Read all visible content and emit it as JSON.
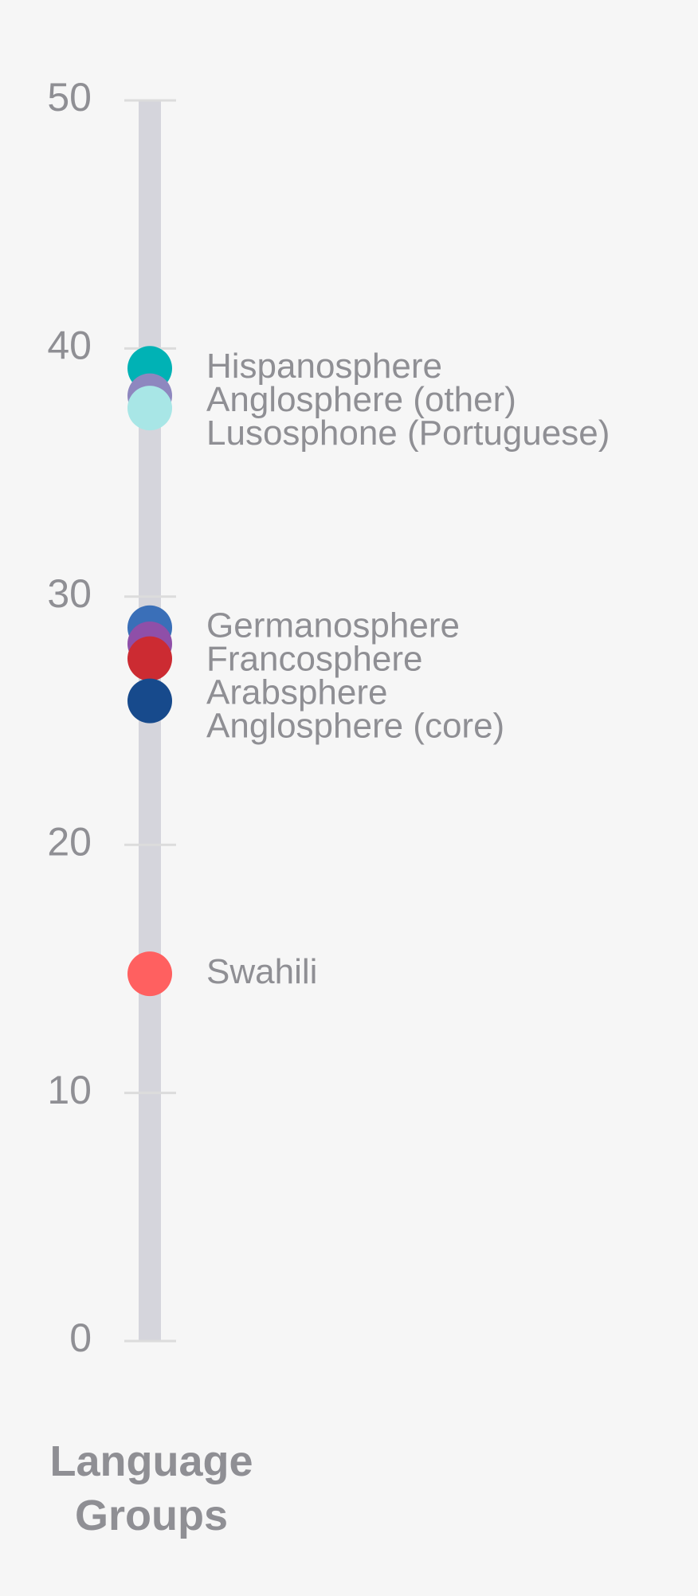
{
  "chart_data": {
    "type": "dot-strip",
    "x_label": "Language Groups",
    "categories": [
      "Hispanosphere",
      "Anglosphere (other)",
      "Lusosphone (Portuguese)",
      "Germanosphere",
      "Francosphere",
      "Arabsphere",
      "Anglosphere (core)",
      "Swahili"
    ],
    "values": [
      39.2,
      38.1,
      37.6,
      28.75,
      28.1,
      27.5,
      25.8,
      14.8
    ],
    "colors": [
      "#00b2b5",
      "#8e87bf",
      "#a8e6e6",
      "#3a6fb8",
      "#8f4fa8",
      "#cc2b32",
      "#174a8c",
      "#ff6060"
    ],
    "ylim": [
      0,
      50
    ],
    "yticks": [
      0,
      10,
      20,
      30,
      40,
      50
    ]
  }
}
